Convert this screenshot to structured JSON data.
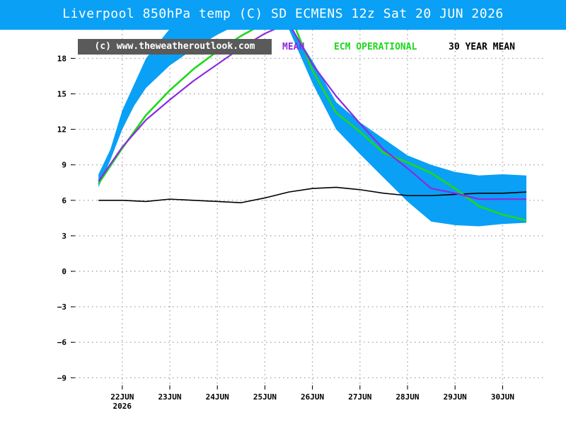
{
  "header": {
    "title": "Liverpool 850hPa temp (C) SD ECMENS 12z Sat 20 JUN 2026",
    "background": "#0aa0f5"
  },
  "watermark": {
    "text": "(c) www.theweatheroutlook.com"
  },
  "chart_data": {
    "type": "line",
    "title": "Liverpool 850hPa temp (C) SD ECMENS 12z Sat 20 JUN 2026",
    "xlabel": "",
    "ylabel": "",
    "grid": true,
    "legend_position": "top-right",
    "x_tick_labels": [
      {
        "day": 1.5,
        "label": "22JUN",
        "sub": "2026"
      },
      {
        "day": 2.5,
        "label": "23JUN",
        "sub": ""
      },
      {
        "day": 3.5,
        "label": "24JUN",
        "sub": ""
      },
      {
        "day": 4.5,
        "label": "25JUN",
        "sub": ""
      },
      {
        "day": 5.5,
        "label": "26JUN",
        "sub": ""
      },
      {
        "day": 6.5,
        "label": "27JUN",
        "sub": ""
      },
      {
        "day": 7.5,
        "label": "28JUN",
        "sub": ""
      },
      {
        "day": 8.5,
        "label": "29JUN",
        "sub": ""
      },
      {
        "day": 9.5,
        "label": "30JUN",
        "sub": ""
      }
    ],
    "xlim": [
      1.0,
      10.0
    ],
    "y_ticks": [
      -9,
      -6,
      -3,
      0,
      3,
      6,
      9,
      12,
      15,
      18
    ],
    "ylim": [
      -10,
      20
    ],
    "sd_band": {
      "color": "#0aa0f5",
      "days": [
        1.0,
        1.25,
        1.5,
        1.75,
        2.0,
        2.5,
        3.0,
        3.5,
        4.0,
        4.5,
        5.0,
        5.5,
        6.0,
        6.5,
        7.0,
        7.5,
        8.0,
        8.5,
        9.0,
        9.5,
        10.0
      ],
      "upper": [
        8.2,
        10.3,
        13.6,
        15.8,
        18.0,
        20.5,
        21.5,
        22.0,
        22.5,
        22.2,
        21.0,
        17.8,
        14.3,
        12.6,
        11.2,
        9.8,
        9.0,
        8.4,
        8.1,
        8.2,
        8.1
      ],
      "lower": [
        7.1,
        9.4,
        12.0,
        14.0,
        15.5,
        17.4,
        18.8,
        20.0,
        21.0,
        21.4,
        20.5,
        15.9,
        12.0,
        9.9,
        7.9,
        5.9,
        4.2,
        3.9,
        3.8,
        4.0,
        4.1
      ]
    },
    "series": [
      {
        "name": "MEAN",
        "color": "#8a2be2",
        "x": [
          1.0,
          1.5,
          2.0,
          2.5,
          3.0,
          3.5,
          4.0,
          4.5,
          5.0,
          5.5,
          6.0,
          6.5,
          7.0,
          7.5,
          8.0,
          8.5,
          9.0,
          9.5,
          10.0
        ],
        "values": [
          7.6,
          10.5,
          12.8,
          14.5,
          16.1,
          17.5,
          18.9,
          20.1,
          21.0,
          17.5,
          14.8,
          12.5,
          10.3,
          8.7,
          7.0,
          6.6,
          6.1,
          6.1,
          6.1
        ]
      },
      {
        "name": "ECM OPERATIONAL",
        "color": "#1ed81e",
        "x": [
          1.0,
          1.5,
          2.0,
          2.5,
          3.0,
          3.5,
          4.0,
          4.5,
          5.0,
          5.5,
          6.0,
          6.5,
          7.0,
          7.5,
          8.0,
          8.5,
          9.0,
          9.5,
          10.0
        ],
        "values": [
          7.4,
          10.4,
          13.2,
          15.3,
          17.1,
          18.6,
          19.9,
          21.0,
          22.0,
          17.0,
          13.4,
          11.8,
          10.0,
          9.2,
          8.3,
          7.0,
          5.5,
          4.8,
          4.3
        ]
      },
      {
        "name": "30 YEAR MEAN",
        "color": "#000000",
        "x": [
          1.0,
          1.5,
          2.0,
          2.5,
          3.0,
          3.5,
          4.0,
          4.5,
          5.0,
          5.5,
          6.0,
          6.5,
          7.0,
          7.5,
          8.0,
          8.5,
          9.0,
          9.5,
          10.0
        ],
        "values": [
          6.0,
          6.0,
          5.9,
          6.1,
          6.0,
          5.9,
          5.8,
          6.2,
          6.7,
          7.0,
          7.1,
          6.9,
          6.6,
          6.4,
          6.4,
          6.5,
          6.6,
          6.6,
          6.7
        ]
      }
    ]
  }
}
